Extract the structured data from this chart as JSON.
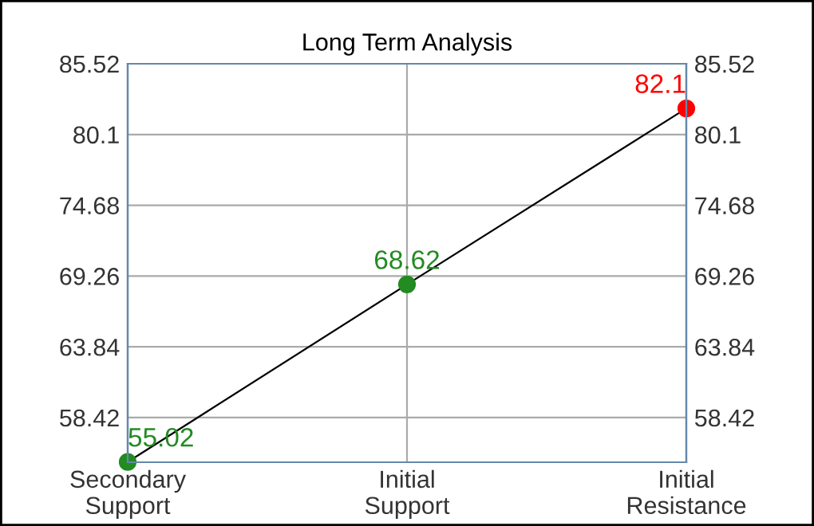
{
  "chart_data": {
    "type": "line",
    "title": "Long Term Analysis",
    "categories": [
      "Secondary\nSupport",
      "Initial\nSupport",
      "Initial\nResistance"
    ],
    "series": [
      {
        "color": "#000000",
        "colors": [
          "#228b22",
          "#228b22",
          "#ff0000"
        ],
        "values": [
          55.02,
          68.62,
          82.1
        ]
      }
    ],
    "ylim": [
      55.0,
      85.52
    ],
    "yticks": [
      58.42,
      63.84,
      69.26,
      74.68,
      80.1,
      85.52
    ],
    "y2lim": [
      55.0,
      85.52
    ],
    "y2ticks": [
      58.42,
      63.84,
      69.26,
      74.68,
      80.1,
      85.52
    ],
    "grid": true,
    "marker": "circle",
    "line_style": "solid",
    "data_labels": true
  }
}
